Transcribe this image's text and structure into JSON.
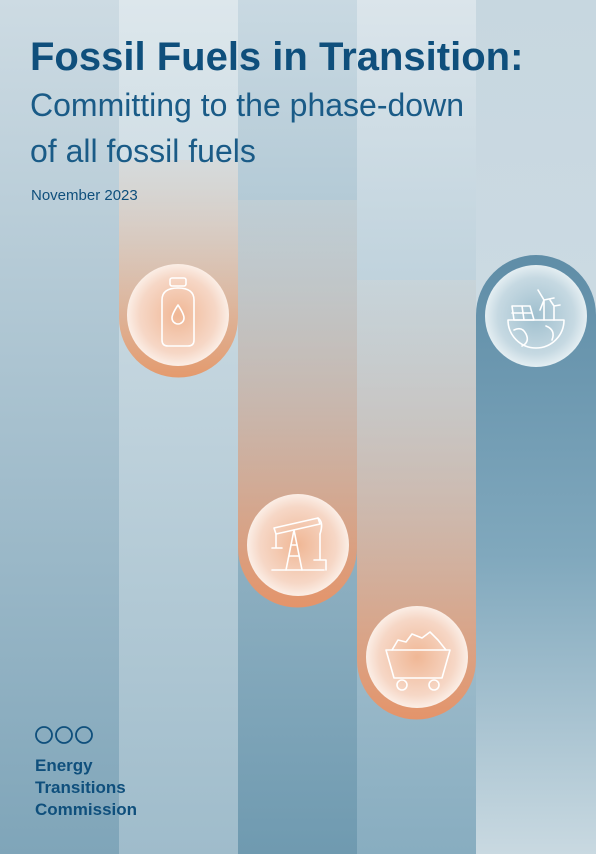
{
  "header": {
    "title": "Fossil Fuels in Transition:",
    "subtitle": [
      "Committing to the phase-down",
      "of all fossil fuels"
    ],
    "date": "November 2023"
  },
  "logo": {
    "lines": [
      "Energy",
      "Transitions",
      "Commission"
    ]
  }
}
